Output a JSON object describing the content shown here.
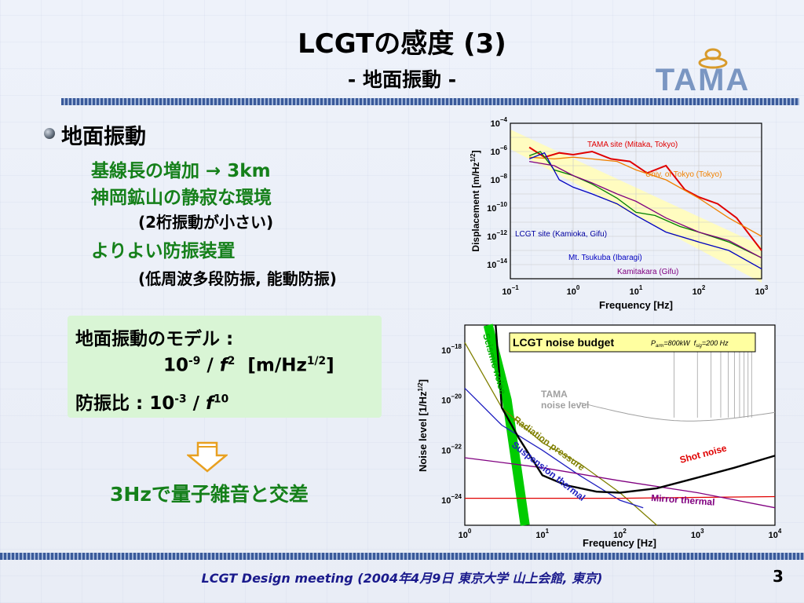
{
  "title": "LCGTの感度 (3)",
  "subtitle": "- 地面振動 -",
  "logo": {
    "text": "TAMA"
  },
  "bullet": {
    "heading": "地面振動",
    "lines": [
      "基線長の増加 → 3km",
      "神岡鉱山の静寂な環境",
      "(2桁振動が小さい)",
      "よりよい防振装置",
      "(低周波多段防振, 能動防振)"
    ]
  },
  "model": {
    "line1": "地面振動のモデル :",
    "line2_base": "10",
    "line2_exp": "-9",
    "line2_sep": " / ",
    "line2_f": "f",
    "line2_fexp": "2",
    "line2_unit_pre": "[m/Hz",
    "line2_unit_exp": "1/2",
    "line2_unit_post": "]",
    "line3_pre": "防振比 : 10",
    "line3_exp": "-3",
    "line3_sep": " / ",
    "line3_f": "f",
    "line3_fexp": "10"
  },
  "conclusion": "3Hzで量子雑音と交差",
  "footer": "LCGT Design meeting (2004年4月9日 東京大学 山上会館, 東京)",
  "page_number": "3",
  "colors": {
    "green_text": "#15801a",
    "footer_text": "#1a1a8c",
    "rule": "#3a5a9a"
  },
  "chart_data": [
    {
      "type": "line",
      "xlabel": "Frequency   [Hz]",
      "ylabel": "Displacement   [m/Hz",
      "ylabel_exp": "1/2",
      "ylabel_post": "]",
      "x_scale": "log",
      "y_scale": "log",
      "xlim": [
        0.1,
        1000
      ],
      "ylim": [
        1e-15,
        0.0001
      ],
      "x_ticks": [
        {
          "base": "10",
          "exp": "−1"
        },
        {
          "base": "10",
          "exp": "0"
        },
        {
          "base": "10",
          "exp": "1"
        },
        {
          "base": "10",
          "exp": "2"
        },
        {
          "base": "10",
          "exp": "3"
        }
      ],
      "y_ticks": [
        {
          "base": "10",
          "exp": "−14"
        },
        {
          "base": "10",
          "exp": "−12"
        },
        {
          "base": "10",
          "exp": "−10"
        },
        {
          "base": "10",
          "exp": "−8"
        },
        {
          "base": "10",
          "exp": "−6"
        },
        {
          "base": "10",
          "exp": "−4"
        }
      ],
      "grid": true,
      "series": [
        {
          "name": "TAMA site (Mitaka, Tokyo)",
          "color": "#e00000",
          "points": [
            [
              0.2,
              2e-06
            ],
            [
              0.35,
              4e-07
            ],
            [
              0.6,
              8e-07
            ],
            [
              1,
              6e-07
            ],
            [
              2,
              1e-06
            ],
            [
              4,
              3e-07
            ],
            [
              8,
              2e-07
            ],
            [
              15,
              3e-08
            ],
            [
              30,
              1e-07
            ],
            [
              60,
              2e-09
            ],
            [
              100,
              6e-10
            ],
            [
              200,
              2e-10
            ],
            [
              400,
              2e-11
            ],
            [
              1000,
              1e-13
            ]
          ]
        },
        {
          "name": "Univ. of Tokyo (Tokyo)",
          "color": "#f08000",
          "points": [
            [
              0.2,
              4e-07
            ],
            [
              0.5,
              3e-07
            ],
            [
              1,
              4e-07
            ],
            [
              2,
              3e-07
            ],
            [
              5,
              2e-07
            ],
            [
              10,
              5e-08
            ],
            [
              30,
              1e-08
            ],
            [
              100,
              5e-10
            ],
            [
              300,
              2e-11
            ],
            [
              1000,
              1e-12
            ]
          ]
        },
        {
          "name": "LCGT site (Kamioka, Gifu)",
          "color": "#008000",
          "points": [
            [
              0.2,
              5e-07
            ],
            [
              0.3,
              1e-06
            ],
            [
              0.5,
              5e-08
            ],
            [
              1,
              2e-08
            ],
            [
              2,
              5e-09
            ],
            [
              5,
              5e-10
            ],
            [
              10,
              5e-11
            ],
            [
              20,
              3e-11
            ],
            [
              50,
              5e-12
            ],
            [
              100,
              2e-12
            ],
            [
              300,
              4e-13
            ],
            [
              1000,
              3e-14
            ]
          ]
        },
        {
          "name": "Mt. Tsukuba (Ibaragi)",
          "color": "#0000c0",
          "points": [
            [
              0.2,
              3e-07
            ],
            [
              0.35,
              8e-07
            ],
            [
              0.6,
              1e-08
            ],
            [
              1,
              3e-09
            ],
            [
              2,
              1e-09
            ],
            [
              5,
              2e-10
            ],
            [
              10,
              3e-11
            ],
            [
              30,
              2e-12
            ],
            [
              100,
              4e-13
            ],
            [
              300,
              1e-13
            ],
            [
              1000,
              5e-15
            ]
          ]
        },
        {
          "name": "Kamitakara (Gifu)",
          "color": "#800080",
          "points": [
            [
              0.2,
              2e-07
            ],
            [
              0.5,
              1e-07
            ],
            [
              1,
              2e-08
            ],
            [
              2,
              6e-09
            ],
            [
              5,
              1e-09
            ],
            [
              10,
              3e-10
            ],
            [
              30,
              2e-11
            ],
            [
              100,
              2e-12
            ],
            [
              300,
              5e-13
            ],
            [
              1000,
              3e-14
            ]
          ]
        }
      ]
    },
    {
      "type": "line",
      "title": "LCGT noise budget",
      "title_params": "P",
      "title_params_sub": "arm",
      "title_params_mid": "=800kW  f",
      "title_params_sub2": "sig",
      "title_params_end": "=200 Hz",
      "xlabel": "Frequency   [Hz]",
      "ylabel": "Noise level   [1/Hz",
      "ylabel_exp": "1/2",
      "ylabel_post": "]",
      "x_scale": "log",
      "y_scale": "log",
      "xlim": [
        1,
        10000
      ],
      "ylim": [
        1e-25,
        1e-17
      ],
      "x_ticks": [
        {
          "base": "10",
          "exp": "0"
        },
        {
          "base": "10",
          "exp": "1"
        },
        {
          "base": "10",
          "exp": "2"
        },
        {
          "base": "10",
          "exp": "3"
        },
        {
          "base": "10",
          "exp": "4"
        }
      ],
      "y_ticks": [
        {
          "base": "10",
          "exp": "−24"
        },
        {
          "base": "10",
          "exp": "−22"
        },
        {
          "base": "10",
          "exp": "−20"
        },
        {
          "base": "10",
          "exp": "−18"
        }
      ],
      "tama_label1": "TAMA",
      "tama_label2": "noise level",
      "series": [
        {
          "name": "Seismic noise",
          "color": "#00cc00",
          "label_angle": 74,
          "points": [
            [
              2,
              1e-17
            ],
            [
              3.5,
              1e-20
            ],
            [
              6,
              1e-25
            ]
          ]
        },
        {
          "name": "Radiation pressure",
          "color": "#808000",
          "label_angle": 36,
          "points": [
            [
              1,
              2e-18
            ],
            [
              3,
              5e-21
            ],
            [
              10,
              2e-22
            ],
            [
              30,
              3e-23
            ],
            [
              100,
              2e-24
            ],
            [
              300,
              1e-25
            ]
          ]
        },
        {
          "name": "Suspension thermal",
          "color": "#2020c0",
          "label_angle": 38,
          "points": [
            [
              1,
              3e-20
            ],
            [
              3,
              1e-21
            ],
            [
              10,
              1e-22
            ],
            [
              30,
              1e-23
            ],
            [
              100,
              1e-24
            ],
            [
              200,
              5e-25
            ]
          ]
        },
        {
          "name": "Shot noise",
          "color": "#e00000",
          "label_angle": -15,
          "points": [
            [
              1,
              1.2e-24
            ],
            [
              10,
              1.2e-24
            ],
            [
              100,
              1.2e-24
            ],
            [
              1000,
              1.3e-24
            ],
            [
              10000,
              1.4e-24
            ]
          ]
        },
        {
          "name": "Mirror thermal",
          "color": "#800080",
          "label_angle": 4,
          "points": [
            [
              1,
              5e-23
            ],
            [
              10,
              2e-23
            ],
            [
              100,
              6e-24
            ],
            [
              1000,
              2e-24
            ],
            [
              10000,
              5e-25
            ]
          ]
        },
        {
          "name": "Total",
          "color": "#000000",
          "points": [
            [
              2.5,
              1e-17
            ],
            [
              3,
              5e-21
            ],
            [
              5,
              3e-22
            ],
            [
              10,
              1e-23
            ],
            [
              20,
              4e-24
            ],
            [
              50,
              2.2e-24
            ],
            [
              100,
              2e-24
            ],
            [
              300,
              3e-24
            ],
            [
              1000,
              8e-24
            ],
            [
              3000,
              2e-23
            ],
            [
              10000,
              6e-23
            ]
          ]
        }
      ]
    }
  ]
}
